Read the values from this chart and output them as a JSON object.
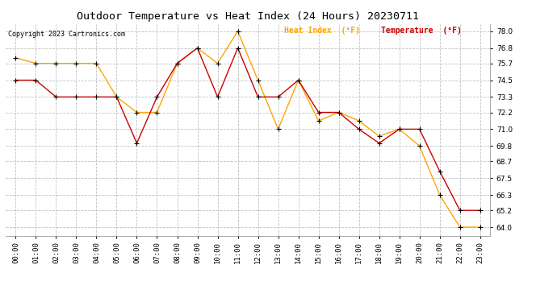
{
  "title": "Outdoor Temperature vs Heat Index (24 Hours) 20230711",
  "copyright": "Copyright 2023 Cartronics.com",
  "legend_heat": "Heat Index  (°F)",
  "legend_temp": "Temperature  (°F)",
  "hours": [
    "00:00",
    "01:00",
    "02:00",
    "03:00",
    "04:00",
    "05:00",
    "06:00",
    "07:00",
    "08:00",
    "09:00",
    "10:00",
    "11:00",
    "12:00",
    "13:00",
    "14:00",
    "15:00",
    "16:00",
    "17:00",
    "18:00",
    "19:00",
    "20:00",
    "21:00",
    "22:00",
    "23:00"
  ],
  "temperature": [
    74.5,
    74.5,
    73.3,
    73.3,
    73.3,
    73.3,
    70.0,
    73.3,
    75.7,
    76.8,
    73.3,
    76.8,
    73.3,
    73.3,
    74.5,
    72.2,
    72.2,
    71.0,
    70.0,
    71.0,
    71.0,
    68.0,
    65.2,
    65.2
  ],
  "heat_index": [
    76.1,
    75.7,
    75.7,
    75.7,
    75.7,
    73.3,
    72.2,
    72.2,
    75.7,
    76.8,
    75.7,
    78.0,
    74.5,
    71.0,
    74.5,
    71.6,
    72.2,
    71.6,
    70.5,
    71.0,
    69.8,
    66.3,
    64.0,
    64.0
  ],
  "ylim_min": 63.4,
  "ylim_max": 78.5,
  "yticks": [
    64.0,
    65.2,
    66.3,
    67.5,
    68.7,
    69.8,
    71.0,
    72.2,
    73.3,
    74.5,
    75.7,
    76.8,
    78.0
  ],
  "color_heat": "#FFA500",
  "color_temp": "#CC0000",
  "color_marker": "#000000",
  "bg_color": "#FFFFFF",
  "grid_color": "#C0C0C0",
  "title_fontsize": 9.5,
  "tick_fontsize": 6.5,
  "copyright_fontsize": 6.0,
  "legend_fontsize": 7.0
}
